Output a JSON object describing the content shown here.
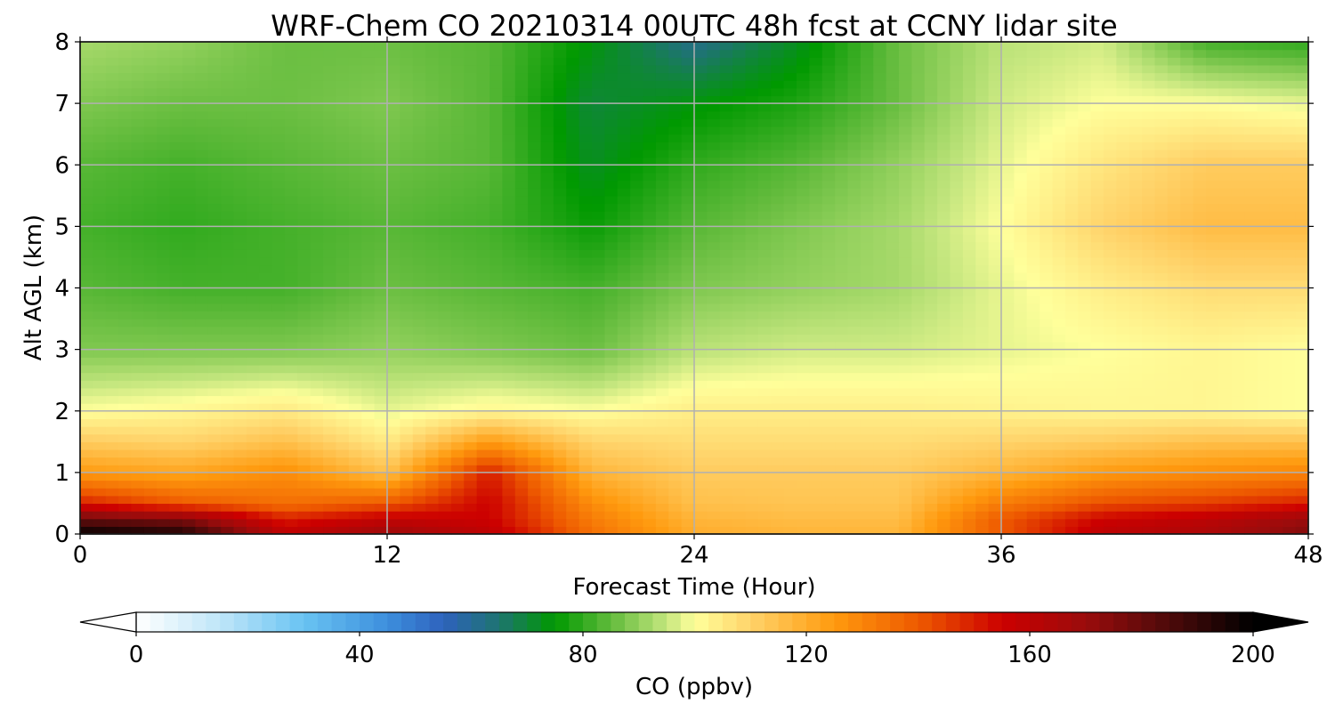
{
  "figure": {
    "title": "WRF-Chem CO  20210314 00UTC 48h fcst at CCNY lidar site",
    "xlabel": "Forecast Time (Hour)",
    "ylabel": "Alt AGL (km)",
    "colorbar_label": "CO  (ppbv)"
  },
  "chart_data": {
    "type": "heatmap",
    "title": "WRF-Chem CO  20210314 00UTC 48h fcst at CCNY lidar site",
    "xlabel": "Forecast Time (Hour)",
    "ylabel": "Alt AGL (km)",
    "xlim": [
      0,
      48
    ],
    "ylim": [
      0,
      8
    ],
    "xticks": [
      0,
      12,
      24,
      36,
      48
    ],
    "yticks": [
      0,
      1,
      2,
      3,
      4,
      5,
      6,
      7,
      8
    ],
    "grid": true,
    "x": [
      0,
      4,
      8,
      12,
      16,
      20,
      24,
      28,
      32,
      36,
      40,
      44,
      48
    ],
    "y": [
      0,
      0.25,
      0.5,
      1,
      1.5,
      2,
      3,
      4,
      5,
      6,
      7,
      8
    ],
    "values": [
      [
        200,
        195,
        160,
        170,
        160,
        135,
        120,
        118,
        118,
        140,
        160,
        165,
        175
      ],
      [
        180,
        175,
        150,
        158,
        155,
        132,
        118,
        116,
        116,
        140,
        155,
        160,
        170
      ],
      [
        150,
        140,
        135,
        140,
        155,
        128,
        115,
        114,
        114,
        132,
        142,
        145,
        150
      ],
      [
        125,
        122,
        128,
        115,
        150,
        118,
        112,
        112,
        112,
        118,
        125,
        128,
        130
      ],
      [
        112,
        110,
        115,
        105,
        125,
        110,
        108,
        108,
        108,
        110,
        112,
        115,
        115
      ],
      [
        100,
        102,
        105,
        98,
        102,
        100,
        104,
        104,
        104,
        103,
        102,
        102,
        100
      ],
      [
        88,
        88,
        88,
        90,
        88,
        86,
        94,
        96,
        96,
        98,
        100,
        102,
        100
      ],
      [
        84,
        82,
        82,
        86,
        84,
        82,
        88,
        90,
        92,
        98,
        104,
        108,
        108
      ],
      [
        82,
        80,
        82,
        84,
        82,
        76,
        84,
        88,
        92,
        100,
        110,
        116,
        116
      ],
      [
        84,
        82,
        84,
        86,
        84,
        72,
        80,
        84,
        90,
        98,
        106,
        112,
        112
      ],
      [
        88,
        86,
        86,
        88,
        84,
        70,
        74,
        78,
        86,
        96,
        100,
        100,
        98
      ],
      [
        92,
        90,
        86,
        86,
        84,
        74,
        62,
        72,
        86,
        94,
        96,
        82,
        80
      ]
    ],
    "colorbar": {
      "label": "CO  (ppbv)",
      "min": 0,
      "max": 200,
      "ticks": [
        0,
        40,
        80,
        120,
        160,
        200
      ],
      "extend": "both",
      "placement": "bottom",
      "stops": [
        {
          "v": 0,
          "c": "#ffffff"
        },
        {
          "v": 15,
          "c": "#bfe6f8"
        },
        {
          "v": 30,
          "c": "#69c3f2"
        },
        {
          "v": 45,
          "c": "#3d8fdd"
        },
        {
          "v": 55,
          "c": "#2e62bd"
        },
        {
          "v": 65,
          "c": "#1e7470"
        },
        {
          "v": 75,
          "c": "#009900"
        },
        {
          "v": 85,
          "c": "#62bb3c"
        },
        {
          "v": 95,
          "c": "#c4e67e"
        },
        {
          "v": 100,
          "c": "#ffff9b"
        },
        {
          "v": 110,
          "c": "#ffd36a"
        },
        {
          "v": 125,
          "c": "#ff9a0e"
        },
        {
          "v": 140,
          "c": "#ee5a00"
        },
        {
          "v": 155,
          "c": "#cc0000"
        },
        {
          "v": 170,
          "c": "#9a0c0c"
        },
        {
          "v": 185,
          "c": "#4d0a0a"
        },
        {
          "v": 200,
          "c": "#000000"
        }
      ]
    }
  }
}
